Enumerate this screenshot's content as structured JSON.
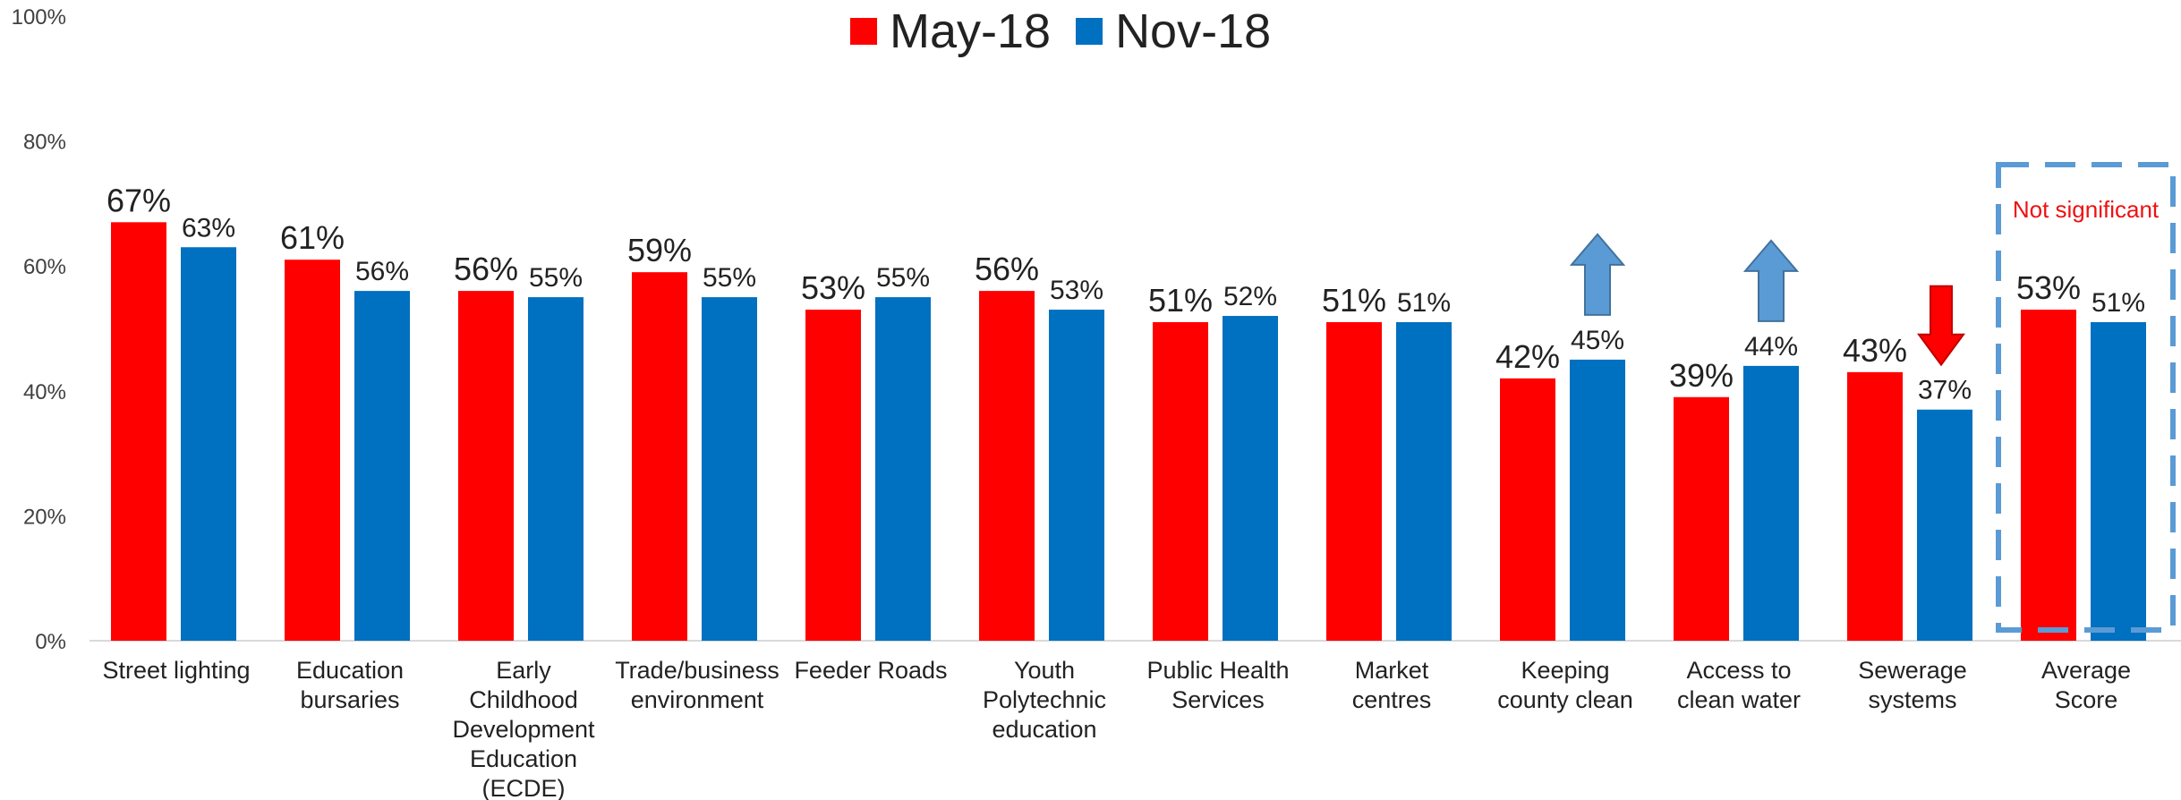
{
  "chart_data": {
    "type": "bar",
    "categories": [
      "Street lighting",
      "Education bursaries",
      "Early Childhood Development Education (ECDE)",
      "Trade/business environment",
      "Feeder Roads",
      "Youth Polytechnic education",
      "Public Health Services",
      "Market centres",
      "Keeping county clean",
      "Access to clean water",
      "Sewerage systems",
      "Average Score"
    ],
    "category_lines": [
      [
        "Street lighting"
      ],
      [
        "Education",
        "bursaries"
      ],
      [
        "Early",
        "Childhood",
        "Development",
        "Education",
        "(ECDE)"
      ],
      [
        "Trade/business",
        "environment"
      ],
      [
        "Feeder Roads"
      ],
      [
        "Youth",
        "Polytechnic",
        "education"
      ],
      [
        "Public Health",
        "Services"
      ],
      [
        "Market",
        "centres"
      ],
      [
        "Keeping",
        "county clean"
      ],
      [
        "Access to",
        "clean water"
      ],
      [
        "Sewerage",
        "systems"
      ],
      [
        "Average",
        "Score"
      ]
    ],
    "series": [
      {
        "name": "May-18",
        "color": "#ff0000",
        "values": [
          67,
          61,
          56,
          59,
          53,
          56,
          51,
          51,
          42,
          39,
          43,
          53
        ],
        "labels": [
          "67%",
          "61%",
          "56%",
          "59%",
          "53%",
          "56%",
          "51%",
          "51%",
          "42%",
          "39%",
          "43%",
          "53%"
        ]
      },
      {
        "name": "Nov-18",
        "color": "#0070c0",
        "values": [
          63,
          56,
          55,
          55,
          55,
          53,
          52,
          51,
          45,
          44,
          37,
          51
        ],
        "labels": [
          "63%",
          "56%",
          "55%",
          "55%",
          "55%",
          "53%",
          "52%",
          "51%",
          "45%",
          "44%",
          "37%",
          "51%"
        ]
      }
    ],
    "y_ticks": [
      "0%",
      "20%",
      "40%",
      "60%",
      "80%",
      "100%"
    ],
    "ylim": [
      0,
      100
    ],
    "xlabel": "",
    "ylabel": "",
    "legend_position": "top-center",
    "annotations": {
      "up_arrows": [
        "Keeping county clean",
        "Access to clean water"
      ],
      "down_arrows": [
        "Sewerage systems"
      ],
      "highlight_box": {
        "category": "Average Score",
        "text": "Not significant",
        "text_color": "#ee1111",
        "border_color": "#5b9bd5"
      },
      "up_arrow_color": "#5b9bd5",
      "down_arrow_color": "#ff0000"
    }
  }
}
